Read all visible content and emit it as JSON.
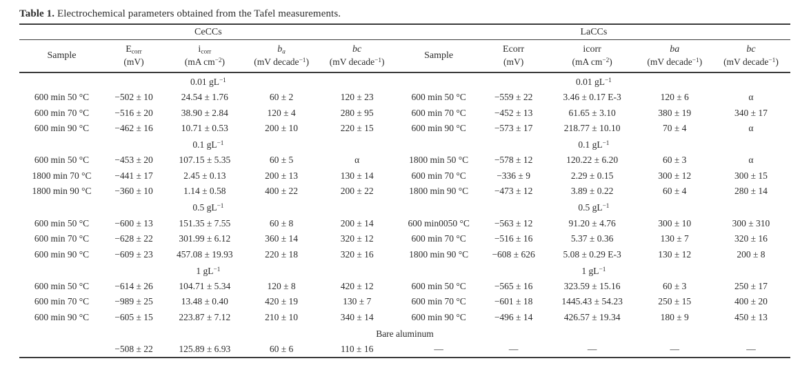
{
  "caption": {
    "label": "Table 1.",
    "text": " Electrochemical parameters obtained from the Tafel measurements."
  },
  "groups": [
    "CeCCs",
    "LaCCs"
  ],
  "columns": {
    "left": [
      {
        "main": "Sample"
      },
      {
        "main": "E",
        "sub": "corr",
        "unit_pre": "(mV)"
      },
      {
        "main": "i",
        "sub": "corr",
        "unit_pre": "(mA cm",
        "unit_sup": "−2",
        "unit_post": ")"
      },
      {
        "main": "b",
        "sub": "a",
        "unit_pre": "(mV decade",
        "unit_sup": "−1",
        "unit_post": ")"
      },
      {
        "main": "bc",
        "unit_pre": "(mV decade",
        "unit_sup": "−1",
        "unit_post": ")"
      }
    ],
    "right": [
      {
        "main": "Sample"
      },
      {
        "main": "Ecorr",
        "unit_pre": "(mV)"
      },
      {
        "main": "icorr",
        "unit_pre": "(mA cm",
        "unit_sup": "−2",
        "unit_post": ")"
      },
      {
        "main": "ba",
        "unit_pre": "(mV decade",
        "unit_sup": "−1",
        "unit_post": ")"
      },
      {
        "main": "bc",
        "unit_pre": "(mV decade",
        "unit_sup": "−1",
        "unit_post": ")"
      }
    ]
  },
  "sections": [
    {
      "conc_pre": "0.01 gL",
      "conc_sup": "−1",
      "rows": [
        {
          "l": [
            "600 min 50 °C",
            "−502 ± 10",
            "24.54 ± 1.76",
            "60 ± 2",
            "120 ± 23"
          ],
          "r": [
            "600 min 50 °C",
            "−559 ± 22",
            "3.46 ± 0.17 E-3",
            "120 ± 6",
            "α"
          ]
        },
        {
          "l": [
            "600 min 70 °C",
            "−516 ± 20",
            "38.90 ± 2.84",
            "120 ± 4",
            "280 ± 95"
          ],
          "r": [
            "600 min 70 °C",
            "−452 ± 13",
            "61.65 ± 3.10",
            "380 ± 19",
            "340 ± 17"
          ]
        },
        {
          "l": [
            "600 min 90 °C",
            "−462 ± 16",
            "10.71 ± 0.53",
            "200 ± 10",
            "220 ± 15"
          ],
          "r": [
            "600 min 90 °C",
            "−573 ± 17",
            "218.77 ± 10.10",
            "70 ± 4",
            "α"
          ]
        }
      ]
    },
    {
      "conc_pre": "0.1 gL",
      "conc_sup": "−1",
      "rows": [
        {
          "l": [
            "600 min 50 °C",
            "−453 ± 20",
            "107.15 ± 5.35",
            "60 ± 5",
            "α"
          ],
          "r": [
            "1800 min 50 °C",
            "−578 ± 12",
            "120.22 ± 6.20",
            "60 ± 3",
            "α"
          ]
        },
        {
          "l": [
            "1800 min 70 °C",
            "−441 ± 17",
            "2.45 ± 0.13",
            "200 ± 13",
            "130 ± 14"
          ],
          "r": [
            "600 min 70 °C",
            "−336 ± 9",
            "2.29 ± 0.15",
            "300 ± 12",
            "300 ± 15"
          ]
        },
        {
          "l": [
            "1800 min 90 °C",
            "−360 ± 10",
            "1.14 ± 0.58",
            "400 ± 22",
            "200 ± 22"
          ],
          "r": [
            "1800 min 90 °C",
            "−473 ± 12",
            "3.89 ± 0.22",
            "60 ± 4",
            "280 ± 14"
          ]
        }
      ]
    },
    {
      "conc_pre": "0.5 gL",
      "conc_sup": "−1",
      "rows": [
        {
          "l": [
            "600 min 50 °C",
            "−600 ± 13",
            "151.35 ± 7.55",
            "60 ± 8",
            "200 ± 14"
          ],
          "r": [
            "600 min0050 °C",
            "−563 ± 12",
            "91.20 ± 4.76",
            "300 ± 10",
            "300 ± 310"
          ]
        },
        {
          "l": [
            "600 min 70 °C",
            "−628 ± 22",
            "301.99 ± 6.12",
            "360 ± 14",
            "320 ± 12"
          ],
          "r": [
            "600 min 70 °C",
            "−516 ± 16",
            "5.37 ± 0.36",
            "130 ± 7",
            "320 ± 16"
          ]
        },
        {
          "l": [
            "600 min 90 °C",
            "−609 ± 23",
            "457.08 ± 19.93",
            "220 ± 18",
            "320 ± 16"
          ],
          "r": [
            "1800 min 90 °C",
            "−608 ± 626",
            "5.08 ± 0.29 E-3",
            "130 ± 12",
            "200 ± 8"
          ]
        }
      ]
    },
    {
      "conc_pre": "1 gL",
      "conc_sup": "−1",
      "rows": [
        {
          "l": [
            "600 min 50 °C",
            "−614 ± 26",
            "104.71 ± 5.34",
            "120 ± 8",
            "420 ± 12"
          ],
          "r": [
            "600 min 50 °C",
            "−565 ± 16",
            "323.59 ± 15.16",
            "60 ± 3",
            "250 ± 17"
          ]
        },
        {
          "l": [
            "600 min 70 °C",
            "−989 ± 25",
            "13.48 ± 0.40",
            "420 ± 19",
            "130 ± 7"
          ],
          "r": [
            "600 min 70 °C",
            "−601 ± 18",
            "1445.43 ± 54.23",
            "250 ± 15",
            "400 ± 20"
          ]
        },
        {
          "l": [
            "600 min 90 °C",
            "−605 ± 15",
            "223.87 ± 7.12",
            "210 ± 10",
            "340 ± 14"
          ],
          "r": [
            "600 min 90 °C",
            "−496 ± 14",
            "426.57 ± 19.34",
            "180 ± 9",
            "450 ± 13"
          ]
        }
      ]
    }
  ],
  "bare": {
    "label": "Bare aluminum",
    "row_l": [
      "",
      "−508 ± 22",
      "125.89 ± 6.93",
      "60 ± 6",
      "110 ± 16"
    ],
    "row_r": [
      "—",
      "—",
      "—",
      "—",
      "—"
    ]
  }
}
